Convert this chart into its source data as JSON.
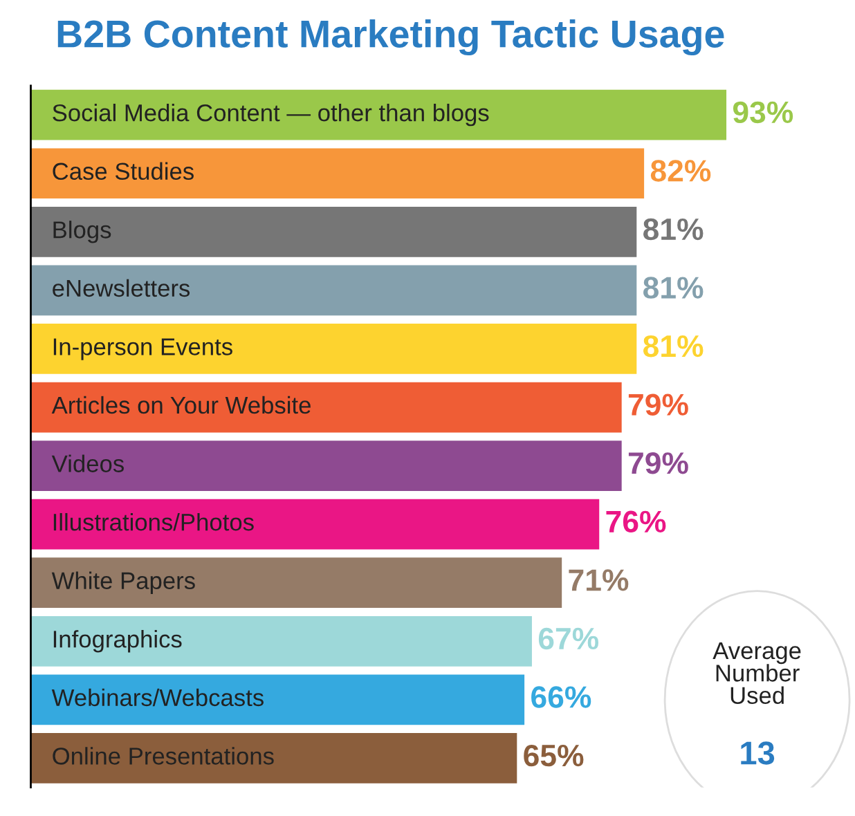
{
  "chart_data": {
    "type": "bar",
    "orientation": "horizontal",
    "title": "B2B Content Marketing Tactic Usage",
    "categories": [
      "Social Media Content — other than blogs",
      "Case Studies",
      "Blogs",
      "eNewsletters",
      "In-person Events",
      "Articles on Your Website",
      "Videos",
      "Illustrations/Photos",
      "White Papers",
      "Infographics",
      "Webinars/Webcasts",
      "Online Presentations"
    ],
    "values": [
      93,
      82,
      81,
      81,
      81,
      79,
      79,
      76,
      71,
      67,
      66,
      65
    ],
    "value_labels": [
      "93%",
      "82%",
      "81%",
      "81%",
      "81%",
      "79%",
      "79%",
      "76%",
      "71%",
      "67%",
      "66%",
      "65%"
    ],
    "colors": [
      "#9ac84a",
      "#f7963a",
      "#767676",
      "#84a0ad",
      "#fdd32f",
      "#ef5d35",
      "#8e4a91",
      "#ea1685",
      "#957b67",
      "#9dd8d9",
      "#35a9df",
      "#8b5e3c"
    ],
    "annotations": [
      "Average Number Used",
      "13"
    ]
  }
}
